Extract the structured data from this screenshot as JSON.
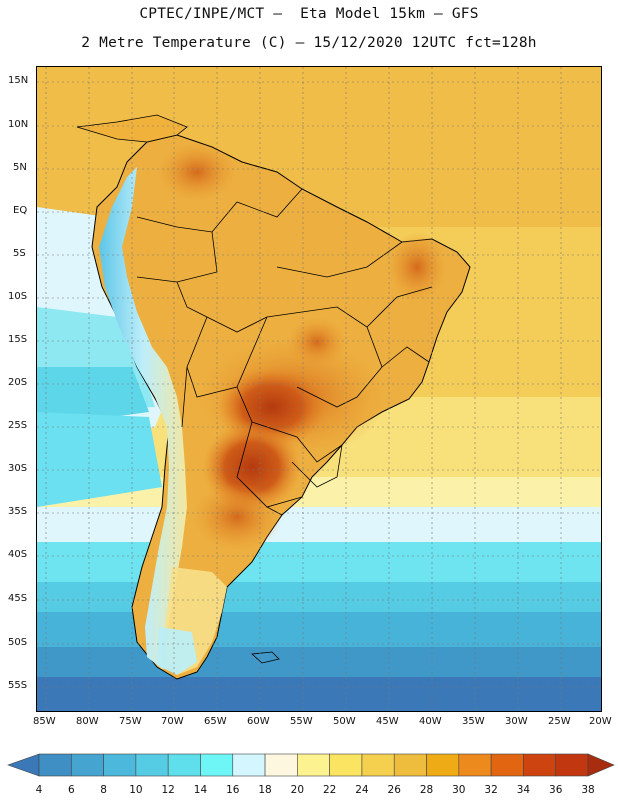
{
  "header": {
    "line1": "CPTEC/INPE/MCT –  Eta Model 15km – GFS",
    "line2": "2 Metre Temperature (C) – 15/12/2020 12UTC fct=128h"
  },
  "axes": {
    "lat_labels": [
      "15N",
      "10N",
      "5N",
      "EQ",
      "5S",
      "10S",
      "15S",
      "20S",
      "25S",
      "30S",
      "35S",
      "40S",
      "45S",
      "50S",
      "55S"
    ],
    "lon_labels": [
      "85W",
      "80W",
      "75W",
      "70W",
      "65W",
      "60W",
      "55W",
      "50W",
      "45W",
      "40W",
      "35W",
      "30W",
      "25W",
      "20W"
    ]
  },
  "colorbar": {
    "values": [
      "4",
      "6",
      "8",
      "10",
      "12",
      "14",
      "16",
      "18",
      "20",
      "22",
      "24",
      "26",
      "28",
      "30",
      "32",
      "34",
      "36",
      "38"
    ],
    "colors": [
      "#3a78b8",
      "#3f8ec4",
      "#45a4d0",
      "#4cb8dc",
      "#55cbe4",
      "#5edfeb",
      "#6ef5f5",
      "#d3f6ff",
      "#fdf7df",
      "#fcf28f",
      "#fbe462",
      "#f5d04e",
      "#efbd3e",
      "#eeab16",
      "#ec8a1e",
      "#e26612",
      "#ce4410",
      "#c13810",
      "#a82c0e"
    ]
  }
}
